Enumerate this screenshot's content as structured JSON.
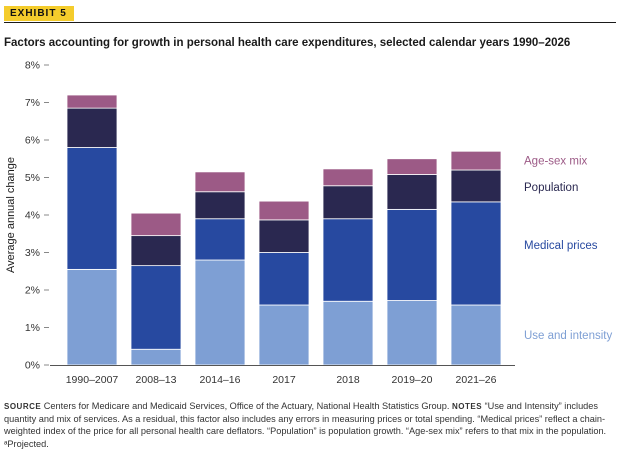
{
  "header": {
    "exhibit_label": "EXHIBIT 5",
    "title": "Factors accounting for growth in personal health care expenditures, selected calendar years 1990–2026"
  },
  "chart_data": {
    "type": "bar",
    "stacked": true,
    "title": "Factors accounting for growth in personal health care expenditures, selected calendar years 1990–2026",
    "ylabel": "Average annual change",
    "xlabel": "",
    "ylim": [
      0,
      8
    ],
    "yticks": [
      "0%",
      "1%",
      "2%",
      "3%",
      "4%",
      "5%",
      "6%",
      "7%",
      "8%"
    ],
    "categories": [
      "1990–2007",
      "2008–13",
      "2014–16",
      "2017",
      "2018",
      "2019–20",
      "2021–26"
    ],
    "legend_position": "right",
    "grid": false,
    "series": [
      {
        "name": "Use and intensity",
        "color": "#7e9fd4",
        "values": [
          2.55,
          0.42,
          2.8,
          1.6,
          1.7,
          1.72,
          1.6
        ]
      },
      {
        "name": "Medical prices",
        "color": "#2749a0",
        "values": [
          3.25,
          2.23,
          1.1,
          1.4,
          2.2,
          2.43,
          2.75
        ]
      },
      {
        "name": "Population",
        "color": "#2a2850",
        "values": [
          1.05,
          0.8,
          0.72,
          0.87,
          0.88,
          0.93,
          0.85
        ]
      },
      {
        "name": "Age-sex mix",
        "color": "#9c5a86",
        "values": [
          0.35,
          0.6,
          0.53,
          0.5,
          0.45,
          0.42,
          0.5
        ]
      }
    ]
  },
  "footnote": {
    "source_label": "SOURCE",
    "source_text": "Centers for Medicare and Medicaid Services, Office of the Actuary, National Health Statistics Group.",
    "notes_label": "NOTES",
    "notes_text": "“Use and Intensity” includes quantity and mix of services. As a residual, this factor also includes any errors in measuring prices or total spending. “Medical prices” reflect a chain-weighted index of the price for all personal health care deflators. “Population” is population growth. “Age-sex mix” refers to that mix in the population. ᵃProjected."
  }
}
